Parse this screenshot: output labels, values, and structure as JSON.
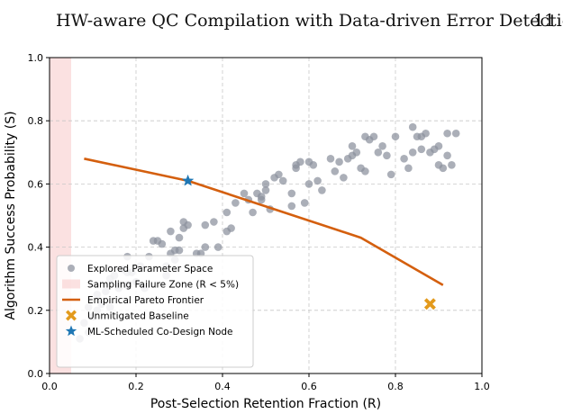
{
  "page": {
    "running_title": "HW-aware QC Compilation with Data-driven Error Detection",
    "page_number": "11"
  },
  "chart_data": {
    "type": "scatter",
    "xlabel": "Post-Selection Retention Fraction (R)",
    "ylabel": "Algorithm Success Probability (S)",
    "xlim": [
      0.0,
      1.0
    ],
    "ylim": [
      0.0,
      1.0
    ],
    "xticks": [
      "0.0",
      "0.2",
      "0.4",
      "0.6",
      "0.8",
      "1.0"
    ],
    "yticks": [
      "0.0",
      "0.2",
      "0.4",
      "0.6",
      "0.8",
      "1.0"
    ],
    "grid": true,
    "legend_position": "lower-left",
    "failure_zone": {
      "label": "Sampling Failure Zone (R < 5%)",
      "x_range": [
        0.0,
        0.05
      ],
      "color": "#f8c8c8"
    },
    "series": [
      {
        "name": "Explored Parameter Space",
        "kind": "scatter",
        "color": "#8a909c",
        "points": [
          [
            0.07,
            0.11
          ],
          [
            0.08,
            0.16
          ],
          [
            0.09,
            0.13
          ],
          [
            0.09,
            0.21
          ],
          [
            0.1,
            0.18
          ],
          [
            0.11,
            0.2
          ],
          [
            0.11,
            0.25
          ],
          [
            0.12,
            0.22
          ],
          [
            0.13,
            0.26
          ],
          [
            0.14,
            0.21
          ],
          [
            0.14,
            0.3
          ],
          [
            0.15,
            0.31
          ],
          [
            0.16,
            0.27
          ],
          [
            0.16,
            0.28
          ],
          [
            0.17,
            0.33
          ],
          [
            0.18,
            0.28
          ],
          [
            0.18,
            0.32
          ],
          [
            0.18,
            0.37
          ],
          [
            0.19,
            0.32
          ],
          [
            0.2,
            0.29
          ],
          [
            0.21,
            0.34
          ],
          [
            0.22,
            0.27
          ],
          [
            0.23,
            0.37
          ],
          [
            0.24,
            0.42
          ],
          [
            0.25,
            0.42
          ],
          [
            0.26,
            0.41
          ],
          [
            0.27,
            0.34
          ],
          [
            0.27,
            0.31
          ],
          [
            0.28,
            0.38
          ],
          [
            0.28,
            0.45
          ],
          [
            0.29,
            0.36
          ],
          [
            0.29,
            0.39
          ],
          [
            0.3,
            0.39
          ],
          [
            0.3,
            0.43
          ],
          [
            0.31,
            0.46
          ],
          [
            0.31,
            0.48
          ],
          [
            0.32,
            0.47
          ],
          [
            0.34,
            0.38
          ],
          [
            0.35,
            0.38
          ],
          [
            0.36,
            0.4
          ],
          [
            0.36,
            0.47
          ],
          [
            0.38,
            0.48
          ],
          [
            0.39,
            0.4
          ],
          [
            0.41,
            0.45
          ],
          [
            0.41,
            0.51
          ],
          [
            0.42,
            0.46
          ],
          [
            0.43,
            0.54
          ],
          [
            0.45,
            0.57
          ],
          [
            0.46,
            0.55
          ],
          [
            0.47,
            0.51
          ],
          [
            0.48,
            0.57
          ],
          [
            0.49,
            0.56
          ],
          [
            0.49,
            0.55
          ],
          [
            0.5,
            0.6
          ],
          [
            0.5,
            0.58
          ],
          [
            0.51,
            0.52
          ],
          [
            0.52,
            0.62
          ],
          [
            0.53,
            0.63
          ],
          [
            0.54,
            0.61
          ],
          [
            0.56,
            0.57
          ],
          [
            0.56,
            0.53
          ],
          [
            0.57,
            0.66
          ],
          [
            0.57,
            0.65
          ],
          [
            0.58,
            0.67
          ],
          [
            0.59,
            0.54
          ],
          [
            0.6,
            0.67
          ],
          [
            0.6,
            0.6
          ],
          [
            0.61,
            0.66
          ],
          [
            0.62,
            0.61
          ],
          [
            0.63,
            0.58
          ],
          [
            0.65,
            0.68
          ],
          [
            0.66,
            0.64
          ],
          [
            0.67,
            0.67
          ],
          [
            0.68,
            0.62
          ],
          [
            0.69,
            0.68
          ],
          [
            0.7,
            0.72
          ],
          [
            0.7,
            0.69
          ],
          [
            0.71,
            0.7
          ],
          [
            0.72,
            0.65
          ],
          [
            0.73,
            0.64
          ],
          [
            0.73,
            0.75
          ],
          [
            0.74,
            0.74
          ],
          [
            0.75,
            0.75
          ],
          [
            0.76,
            0.7
          ],
          [
            0.77,
            0.72
          ],
          [
            0.78,
            0.69
          ],
          [
            0.79,
            0.63
          ],
          [
            0.8,
            0.75
          ],
          [
            0.82,
            0.68
          ],
          [
            0.83,
            0.65
          ],
          [
            0.84,
            0.7
          ],
          [
            0.84,
            0.78
          ],
          [
            0.85,
            0.75
          ],
          [
            0.86,
            0.75
          ],
          [
            0.86,
            0.71
          ],
          [
            0.87,
            0.76
          ],
          [
            0.88,
            0.7
          ],
          [
            0.89,
            0.71
          ],
          [
            0.9,
            0.72
          ],
          [
            0.9,
            0.66
          ],
          [
            0.91,
            0.65
          ],
          [
            0.92,
            0.69
          ],
          [
            0.92,
            0.76
          ],
          [
            0.93,
            0.66
          ],
          [
            0.94,
            0.76
          ]
        ]
      },
      {
        "name": "Empirical Pareto Frontier",
        "kind": "line",
        "color": "#d45f0e",
        "points": [
          [
            0.08,
            0.68
          ],
          [
            0.32,
            0.61
          ],
          [
            0.52,
            0.52
          ],
          [
            0.72,
            0.43
          ],
          [
            0.91,
            0.28
          ]
        ]
      },
      {
        "name": "Unmitigated Baseline",
        "kind": "marker-x",
        "color": "#e39a1c",
        "points": [
          [
            0.88,
            0.22
          ]
        ]
      },
      {
        "name": "ML-Scheduled Co-Design Node",
        "kind": "marker-star",
        "color": "#1f77b4",
        "points": [
          [
            0.32,
            0.61
          ]
        ]
      }
    ]
  }
}
